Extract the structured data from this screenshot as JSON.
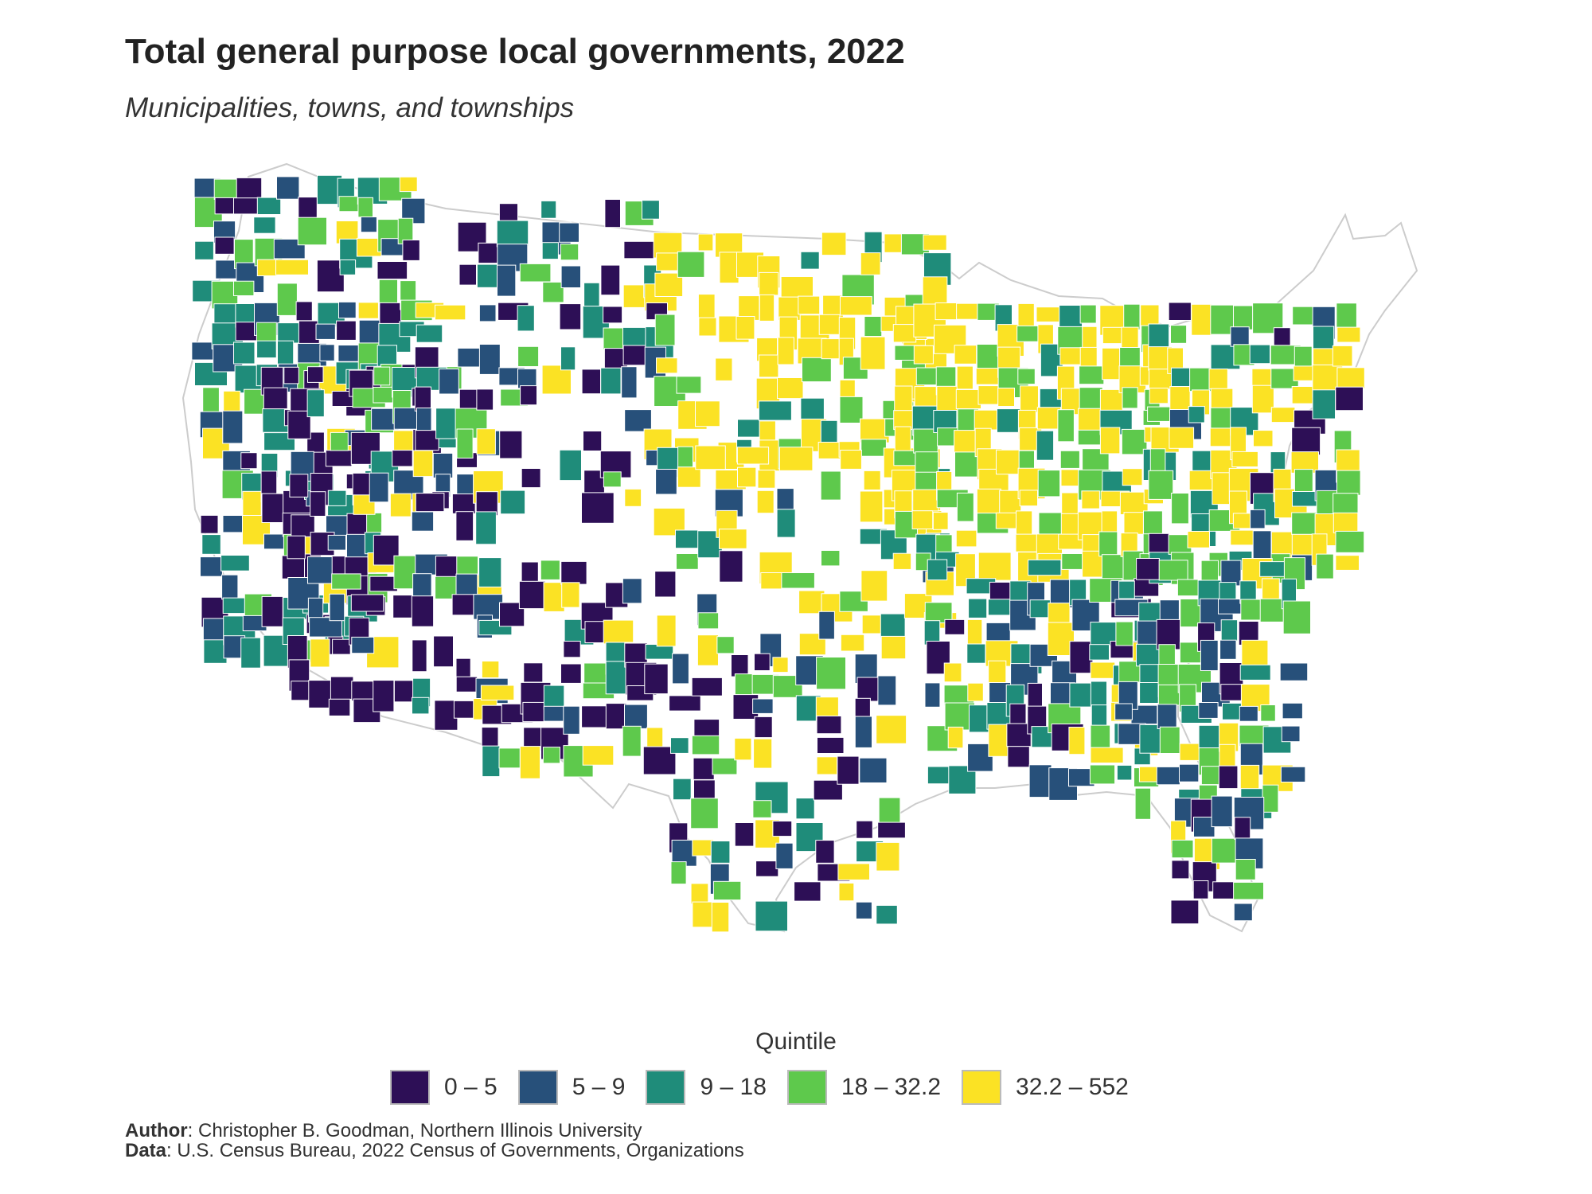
{
  "title": "Total general purpose local governments, 2022",
  "subtitle": "Municipalities, towns, and townships",
  "legend": {
    "title": "Quintile",
    "items": [
      {
        "label": "0 – 5",
        "color": "#2d0f56"
      },
      {
        "label": "5 – 9",
        "color": "#27507a"
      },
      {
        "label": "9 – 18",
        "color": "#1f8c7a"
      },
      {
        "label": "18 – 32.2",
        "color": "#5ec94c"
      },
      {
        "label": "32.2 – 552",
        "color": "#fbe224"
      }
    ]
  },
  "credits": {
    "author_label": "Author",
    "author_value": ": Christopher B. Goodman, Northern Illinois University",
    "data_label": "Data",
    "data_value": ": U.S. Census Bureau, 2022 Census of Governments, Organizations"
  },
  "map": {
    "region": "United States (contiguous)",
    "unit": "county",
    "missing_color": "#ffffff",
    "border_color": "#cccccc"
  }
}
